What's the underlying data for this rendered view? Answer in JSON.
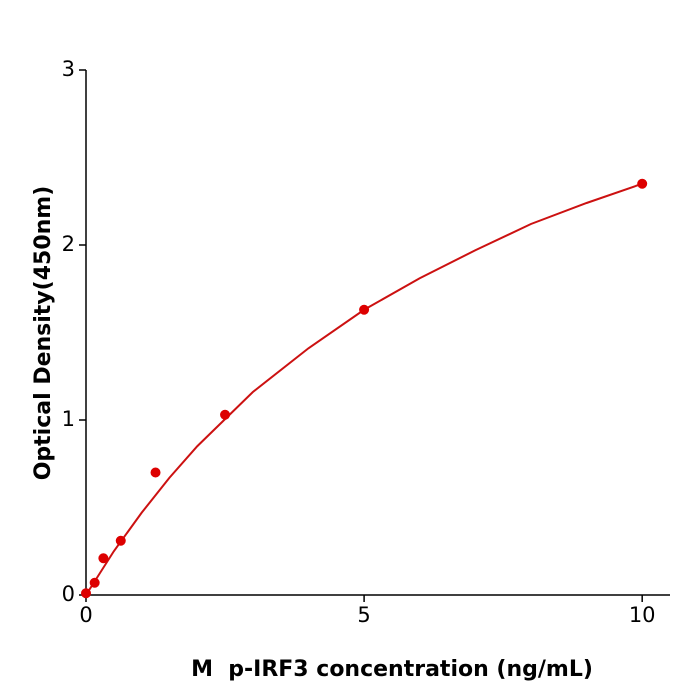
{
  "chart_data": {
    "type": "scatter",
    "xlabel": "M  p-IRF3 concentration (ng/mL)",
    "ylabel": "Optical Density(450nm)",
    "xlim": [
      0,
      10.5
    ],
    "ylim": [
      0,
      3
    ],
    "xticks": [
      0,
      5,
      10
    ],
    "yticks": [
      0,
      1,
      2,
      3
    ],
    "series": [
      {
        "kind": "points",
        "color": "#dd0000",
        "x": [
          0,
          0.156,
          0.3125,
          0.625,
          1.25,
          2.5,
          5,
          10
        ],
        "values": [
          0.01,
          0.07,
          0.21,
          0.31,
          0.7,
          1.03,
          1.63,
          2.35
        ]
      },
      {
        "kind": "curve",
        "color": "#cc1111",
        "x": [
          0,
          0.5,
          1,
          1.5,
          2,
          3,
          4,
          5,
          6,
          7,
          8,
          9,
          10
        ],
        "values": [
          0,
          0.25,
          0.47,
          0.67,
          0.85,
          1.16,
          1.41,
          1.63,
          1.81,
          1.97,
          2.12,
          2.24,
          2.35
        ]
      }
    ]
  }
}
